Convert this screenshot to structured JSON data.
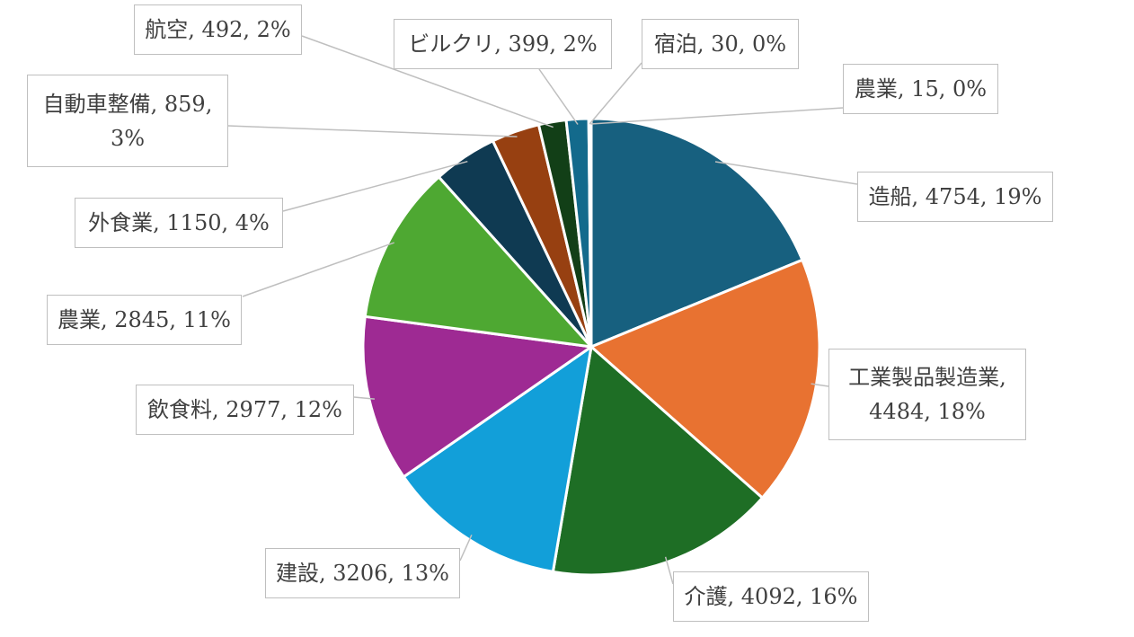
{
  "chart_data": {
    "type": "pie",
    "title": "",
    "legend": "none",
    "slices": [
      {
        "label": "造船",
        "value": 4754,
        "percent": "19%",
        "color": "#17607f",
        "text": "造船, 4754, 19%"
      },
      {
        "label": "工業製品製造業",
        "value": 4484,
        "percent": "18%",
        "color": "#e87231",
        "line1": "工業製品製造業,",
        "line2": "4484, 18%"
      },
      {
        "label": "介護",
        "value": 4092,
        "percent": "16%",
        "color": "#1e6e25",
        "text": "介護, 4092, 16%"
      },
      {
        "label": "建設",
        "value": 3206,
        "percent": "13%",
        "color": "#129fd9",
        "text": "建設, 3206, 13%"
      },
      {
        "label": "飲食料",
        "value": 2977,
        "percent": "12%",
        "color": "#9e2a93",
        "text": "飲食料, 2977, 12%"
      },
      {
        "label": "農業",
        "value": 2845,
        "percent": "11%",
        "color": "#4ea832",
        "text": "農業, 2845, 11%"
      },
      {
        "label": "外食業",
        "value": 1150,
        "percent": "4%",
        "color": "#0f3a52",
        "text": "外食業, 1150, 4%"
      },
      {
        "label": "自動車整備",
        "value": 859,
        "percent": "3%",
        "color": "#974011",
        "line1": "自動車整備, 859,",
        "line2": "3%"
      },
      {
        "label": "航空",
        "value": 492,
        "percent": "2%",
        "color": "#123f17",
        "text": "航空, 492, 2%"
      },
      {
        "label": "ビルクリ",
        "value": 399,
        "percent": "2%",
        "color": "#136a8c",
        "text": "ビルクリ, 399, 2%"
      },
      {
        "label": "宿泊",
        "value": 30,
        "percent": "0%",
        "color": "#f08a48",
        "text": "宿泊, 30, 0%"
      },
      {
        "label": "農業",
        "value": 15,
        "percent": "0%",
        "color": "#2b8a33",
        "text": "農業, 15, 0%"
      }
    ]
  }
}
